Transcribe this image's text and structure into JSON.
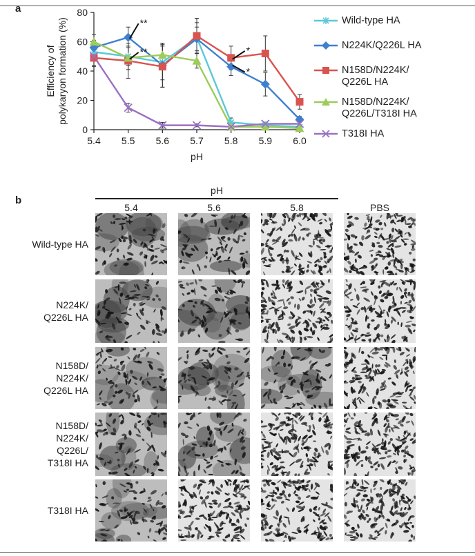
{
  "panel_a": {
    "letter": "a",
    "chart_data": {
      "type": "line",
      "xlabel": "pH",
      "ylabel": "Efficiency of\npolykaryon formation (%)",
      "x": [
        5.4,
        5.5,
        5.6,
        5.7,
        5.8,
        5.9,
        6.0
      ],
      "x_tick_labels": [
        "5.4",
        "5.5",
        "5.6",
        "5.7",
        "5.8",
        "5.9",
        "6.0"
      ],
      "y_ticks": [
        0,
        20,
        40,
        60,
        80
      ],
      "ylim": [
        0,
        80
      ],
      "xlim": [
        5.4,
        6.0
      ],
      "grid": false,
      "legend_position": "right",
      "series": [
        {
          "name": "Wild-type HA",
          "color": "#5bc8d8",
          "marker": "asterisk",
          "values": [
            53,
            50,
            46,
            63,
            5,
            3,
            2
          ],
          "errors": [
            5,
            6,
            12,
            10,
            3,
            2,
            1
          ]
        },
        {
          "name": "N224K/Q226L HA",
          "color": "#3f7fcf",
          "marker": "diamond",
          "values": [
            56,
            63,
            44,
            62,
            43,
            31,
            7
          ],
          "errors": [
            5,
            7,
            15,
            8,
            6,
            8,
            2
          ]
        },
        {
          "name": "N158D/N224K/\nQ226L HA",
          "color": "#d9534f",
          "marker": "square",
          "values": [
            49,
            47,
            43,
            64,
            49,
            52,
            19
          ],
          "errors": [
            6,
            12,
            14,
            12,
            8,
            12,
            5
          ]
        },
        {
          "name": "N158D/N224K/\nQ226L/T318I HA",
          "color": "#9ccc5a",
          "marker": "triangle",
          "values": [
            60,
            49,
            51,
            47,
            2,
            2,
            1
          ],
          "errors": [
            5,
            8,
            8,
            5,
            2,
            2,
            1
          ]
        },
        {
          "name": "T318I HA",
          "color": "#9a70c2",
          "marker": "x",
          "values": [
            50,
            15,
            3,
            3,
            2,
            4,
            4
          ],
          "errors": [
            6,
            3,
            2,
            1,
            1,
            1,
            1
          ]
        }
      ],
      "annotations": [
        {
          "text": "**",
          "x": 5.5,
          "series": 1
        },
        {
          "text": "**",
          "x": 5.5,
          "series": 3
        },
        {
          "text": "*",
          "x": 5.8,
          "series": 2
        },
        {
          "text": "*",
          "x": 5.8,
          "series": 1
        }
      ]
    }
  },
  "panel_b": {
    "letter": "b",
    "group_label": "pH",
    "columns": [
      "5.4",
      "5.6",
      "5.8",
      "PBS"
    ],
    "rows": [
      "Wild-type HA",
      "N224K/\nQ226L HA",
      "N158D/\nN224K/\nQ226L HA",
      "N158D/\nN224K/\nQ226L/\nT318I HA",
      "T318I HA"
    ],
    "fused_cells": [
      [
        1,
        1,
        0,
        0
      ],
      [
        1,
        1,
        0,
        0
      ],
      [
        1,
        1,
        1,
        0
      ],
      [
        1,
        1,
        0,
        0
      ],
      [
        1,
        0,
        0,
        0
      ]
    ]
  }
}
